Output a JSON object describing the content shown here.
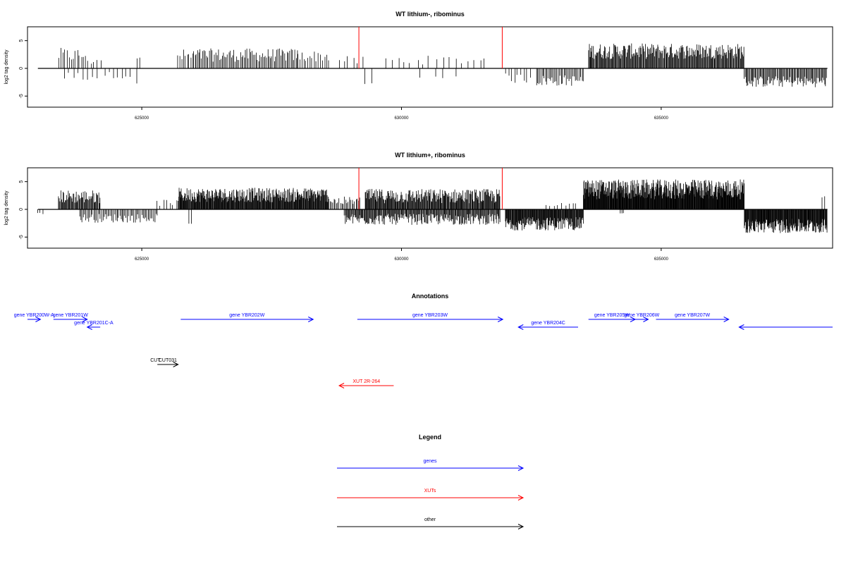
{
  "chart_data": [
    {
      "type": "bar",
      "title": "WT lithium-, ribominus",
      "ylabel": "log2 tag density",
      "xlim": [
        622800,
        638300
      ],
      "ylim": [
        -7,
        7.5
      ],
      "yticks": [
        -5,
        0,
        5
      ],
      "xticks": [
        625000,
        630000,
        635000
      ],
      "xtick_labels": [
        "625000",
        "630000",
        "635000"
      ],
      "markers": [
        629180,
        631940
      ],
      "marker_color": "#ff0000",
      "marker_height": 7.5,
      "regions": [
        {
          "start": 623400,
          "end": 623900,
          "mean": 2.4,
          "spread": 1.3,
          "step": 40
        },
        {
          "start": 623900,
          "end": 624200,
          "mean": 1.5,
          "spread": 1.0,
          "step": 60
        },
        {
          "start": 623500,
          "end": 624200,
          "mean": -1.4,
          "spread": 0.8,
          "step": 90
        },
        {
          "start": 624300,
          "end": 624800,
          "mean": -1.2,
          "spread": 0.6,
          "step": 80
        },
        {
          "start": 624900,
          "end": 625000,
          "mean": 1.8,
          "spread": 0.2,
          "step": 60
        },
        {
          "start": 624900,
          "end": 624950,
          "mean": -2.8,
          "spread": 0.2,
          "step": 60
        },
        {
          "start": 625700,
          "end": 626000,
          "mean": 2.2,
          "spread": 1.3,
          "step": 35
        },
        {
          "start": 626000,
          "end": 628000,
          "mean": 2.4,
          "spread": 1.2,
          "step": 25
        },
        {
          "start": 628000,
          "end": 628600,
          "mean": 2.2,
          "spread": 1.0,
          "step": 40
        },
        {
          "start": 628800,
          "end": 629300,
          "mean": 1.4,
          "spread": 0.8,
          "step": 90
        },
        {
          "start": 629300,
          "end": 629400,
          "mean": -2.8,
          "spread": 0.3,
          "step": 100
        },
        {
          "start": 629700,
          "end": 631700,
          "mean": 1.5,
          "spread": 0.8,
          "step": 120
        },
        {
          "start": 630400,
          "end": 631000,
          "mean": -1.4,
          "spread": 0.4,
          "step": 200
        },
        {
          "start": 632000,
          "end": 632500,
          "mean": -1.8,
          "spread": 0.9,
          "step": 60
        },
        {
          "start": 632600,
          "end": 633500,
          "mean": -2.2,
          "spread": 1.0,
          "step": 25
        },
        {
          "start": 633600,
          "end": 636600,
          "mean": 3.1,
          "spread": 1.4,
          "step": 14
        },
        {
          "start": 636600,
          "end": 638200,
          "mean": -2.4,
          "spread": 1.0,
          "step": 18
        }
      ]
    },
    {
      "type": "bar",
      "title": "WT lithium+, ribominus",
      "ylabel": "log2 tag density",
      "xlim": [
        622800,
        638300
      ],
      "ylim": [
        -7,
        7.5
      ],
      "yticks": [
        -5,
        0,
        5
      ],
      "xticks": [
        625000,
        630000,
        635000
      ],
      "xtick_labels": [
        "625000",
        "630000",
        "635000"
      ],
      "markers": [
        629180,
        631940
      ],
      "marker_color": "#ff0000",
      "marker_height": 7.5,
      "regions": [
        {
          "start": 623000,
          "end": 623100,
          "mean": -0.8,
          "spread": 0.2,
          "step": 50
        },
        {
          "start": 623400,
          "end": 624200,
          "mean": 2.3,
          "spread": 1.2,
          "step": 14
        },
        {
          "start": 623800,
          "end": 625300,
          "mean": -1.6,
          "spread": 0.8,
          "step": 25
        },
        {
          "start": 625300,
          "end": 625700,
          "mean": 1.2,
          "spread": 0.6,
          "step": 60
        },
        {
          "start": 625700,
          "end": 628600,
          "mean": 2.6,
          "spread": 1.3,
          "step": 10
        },
        {
          "start": 625900,
          "end": 626000,
          "mean": -2.6,
          "spread": 0.2,
          "step": 60
        },
        {
          "start": 628600,
          "end": 629200,
          "mean": 1.5,
          "spread": 0.8,
          "step": 25
        },
        {
          "start": 628900,
          "end": 631900,
          "mean": -1.8,
          "spread": 1.0,
          "step": 14
        },
        {
          "start": 629300,
          "end": 631900,
          "mean": 2.4,
          "spread": 1.3,
          "step": 12
        },
        {
          "start": 632000,
          "end": 633500,
          "mean": -2.6,
          "spread": 1.2,
          "step": 10
        },
        {
          "start": 632800,
          "end": 633400,
          "mean": 0.9,
          "spread": 0.4,
          "step": 70
        },
        {
          "start": 633500,
          "end": 636600,
          "mean": 3.6,
          "spread": 1.8,
          "step": 8
        },
        {
          "start": 634200,
          "end": 634300,
          "mean": -0.6,
          "spread": 0.2,
          "step": 40
        },
        {
          "start": 636600,
          "end": 638200,
          "mean": -3.0,
          "spread": 1.3,
          "step": 9
        },
        {
          "start": 638100,
          "end": 638200,
          "mean": 2.2,
          "spread": 0.2,
          "step": 60
        }
      ]
    }
  ],
  "annotations": {
    "title": "Annotations",
    "features": [
      {
        "label": "gene YBR200W-A",
        "start": 622800,
        "end": 623050,
        "row": 0,
        "dir": "+",
        "kind": "gene"
      },
      {
        "label": "gene YBR201W",
        "start": 623300,
        "end": 623950,
        "row": 0,
        "dir": "+",
        "kind": "gene"
      },
      {
        "label": "gene YBR201C-A",
        "start": 623950,
        "end": 624200,
        "row": 1,
        "dir": "-",
        "kind": "gene"
      },
      {
        "label": "gene YBR202W",
        "start": 625750,
        "end": 628300,
        "row": 0,
        "dir": "+",
        "kind": "gene"
      },
      {
        "label": "gene YBR203W",
        "start": 629150,
        "end": 631950,
        "row": 0,
        "dir": "+",
        "kind": "gene"
      },
      {
        "label": "gene YBR204C",
        "start": 632250,
        "end": 633400,
        "row": 1,
        "dir": "-",
        "kind": "gene"
      },
      {
        "label": "gene YBR205W",
        "start": 633600,
        "end": 634500,
        "row": 0,
        "dir": "+",
        "kind": "gene"
      },
      {
        "label": "gene YBR206W",
        "start": 634500,
        "end": 634750,
        "row": 0,
        "dir": "+",
        "kind": "gene"
      },
      {
        "label": "gene YBR207W",
        "start": 634900,
        "end": 636300,
        "row": 0,
        "dir": "+",
        "kind": "gene"
      },
      {
        "label": "",
        "start": 636500,
        "end": 638300,
        "row": 1,
        "dir": "-",
        "kind": "gene"
      },
      {
        "label": "CUT",
        "start": 625300,
        "end": 625450,
        "row": 3,
        "dir": "+",
        "kind": "other"
      },
      {
        "label": "CUT031",
        "start": 625300,
        "end": 625700,
        "row": 3,
        "dir": "+",
        "kind": "other"
      },
      {
        "label": "XUT 2R-264",
        "start": 628800,
        "end": 629850,
        "row": 4,
        "dir": "-",
        "kind": "xut"
      }
    ]
  },
  "legend": {
    "title": "Legend",
    "items": [
      {
        "label": "genes",
        "color": "#0000ff"
      },
      {
        "label": "XUTs",
        "color": "#ff0000"
      },
      {
        "label": "other",
        "color": "#000000"
      }
    ]
  },
  "colors": {
    "gene": "#0000ff",
    "xut": "#ff0000",
    "other": "#000000",
    "axis": "#000000"
  }
}
